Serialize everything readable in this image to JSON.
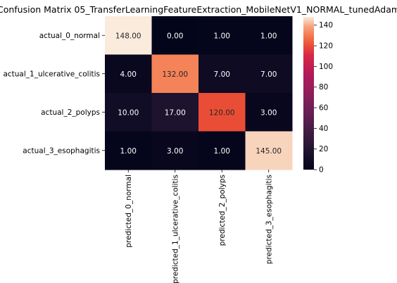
{
  "chart_data": {
    "type": "heatmap",
    "title": "Confusion Matrix 05_TransferLearningFeatureExtraction_MobileNetV1_NORMAL_tunedAdam",
    "row_labels": [
      "actual_0_normal",
      "actual_1_ulcerative_colitis",
      "actual_2_polyps",
      "actual_3_esophagitis"
    ],
    "col_labels": [
      "predicted_0_normal",
      "predicted_1_ulcerative_colitis",
      "predicted_2_polyps",
      "predicted_3_esophagitis"
    ],
    "values": [
      [
        148,
        0,
        1,
        1
      ],
      [
        4,
        132,
        7,
        7
      ],
      [
        10,
        17,
        120,
        3
      ],
      [
        1,
        3,
        1,
        145
      ]
    ],
    "cell_labels": [
      [
        "148.00",
        "0.00",
        "1.00",
        "1.00"
      ],
      [
        "4.00",
        "132.00",
        "7.00",
        "7.00"
      ],
      [
        "10.00",
        "17.00",
        "120.00",
        "3.00"
      ],
      [
        "1.00",
        "3.00",
        "1.00",
        "145.00"
      ]
    ],
    "colorbar": {
      "range": [
        0,
        148
      ],
      "ticks": [
        0,
        20,
        40,
        60,
        80,
        100,
        120,
        140
      ],
      "colormap": "rocket"
    }
  }
}
